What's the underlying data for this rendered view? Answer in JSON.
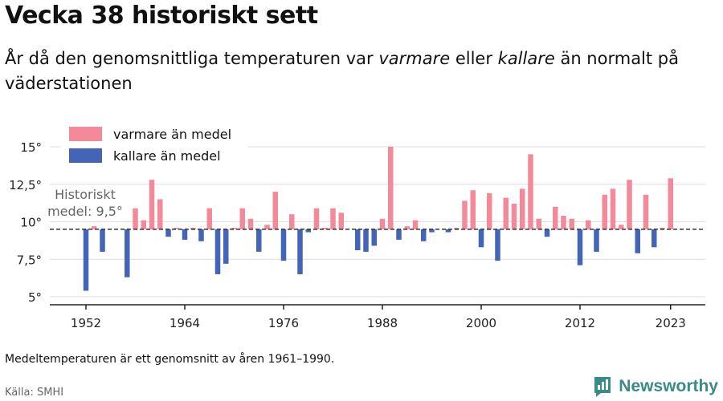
{
  "title": "Vecka 38 historiskt sett",
  "subtitle": {
    "part1": "År då den genomsnittliga temperaturen var ",
    "warm_word": "varmare",
    "part2": " eller ",
    "cold_word": "kallare",
    "part3": " än normalt på väderstationen"
  },
  "footnote": "Medeltemperaturen är ett genomsnitt av åren 1961–1990.",
  "source": "Källa: SMHI",
  "brand": {
    "name": "Newsworthy",
    "icon": "newsworthy-logo-icon"
  },
  "colors": {
    "warm": "#f48a99",
    "cold": "#4464b8",
    "mean_line": "#333333",
    "grid": "#dddddd"
  },
  "chart_data": {
    "type": "bar",
    "baseline": 9.5,
    "baseline_label": [
      "Historiskt",
      "medel: 9,5°"
    ],
    "xlim": [
      1949,
      2026
    ],
    "ylim": [
      5,
      15
    ],
    "yticks": [
      5,
      7.5,
      10,
      12.5,
      15
    ],
    "ytick_labels": [
      "5°",
      "7,5°",
      "10°",
      "12,5°",
      "15°"
    ],
    "xticks": [
      1952,
      1964,
      1976,
      1988,
      2000,
      2012,
      2023
    ],
    "grid": true,
    "legend_position": "top-left",
    "series": [
      {
        "name": "varmare än medel",
        "color": "#f48a99"
      },
      {
        "name": "kallare än medel",
        "color": "#4464b8"
      }
    ],
    "years": [
      1952,
      1953,
      1954,
      1957,
      1958,
      1959,
      1960,
      1961,
      1962,
      1963,
      1964,
      1965,
      1966,
      1967,
      1968,
      1969,
      1970,
      1971,
      1972,
      1973,
      1974,
      1975,
      1976,
      1977,
      1978,
      1979,
      1980,
      1981,
      1982,
      1983,
      1985,
      1986,
      1987,
      1988,
      1989,
      1990,
      1991,
      1992,
      1993,
      1994,
      1996,
      1997,
      1998,
      1999,
      2000,
      2001,
      2002,
      2003,
      2004,
      2005,
      2006,
      2007,
      2008,
      2009,
      2010,
      2011,
      2012,
      2013,
      2014,
      2015,
      2016,
      2017,
      2018,
      2019,
      2020,
      2021,
      2022,
      2023
    ],
    "values": [
      5.4,
      9.7,
      8.0,
      6.3,
      10.9,
      10.1,
      12.8,
      11.5,
      9.0,
      9.6,
      8.8,
      9.6,
      8.7,
      10.9,
      6.5,
      7.2,
      9.6,
      10.9,
      10.2,
      8.0,
      9.8,
      12.0,
      7.4,
      10.5,
      6.5,
      9.3,
      10.9,
      9.6,
      10.9,
      10.6,
      8.1,
      8.0,
      8.4,
      10.2,
      15.0,
      8.8,
      9.7,
      10.1,
      8.7,
      9.3,
      9.3,
      9.6,
      11.4,
      12.1,
      8.3,
      11.9,
      7.4,
      11.6,
      11.2,
      12.2,
      14.5,
      10.2,
      9.0,
      11.0,
      10.4,
      10.2,
      7.1,
      10.1,
      8.0,
      11.8,
      12.2,
      9.8,
      12.8,
      7.9,
      11.8,
      8.3,
      9.6,
      12.9
    ]
  }
}
